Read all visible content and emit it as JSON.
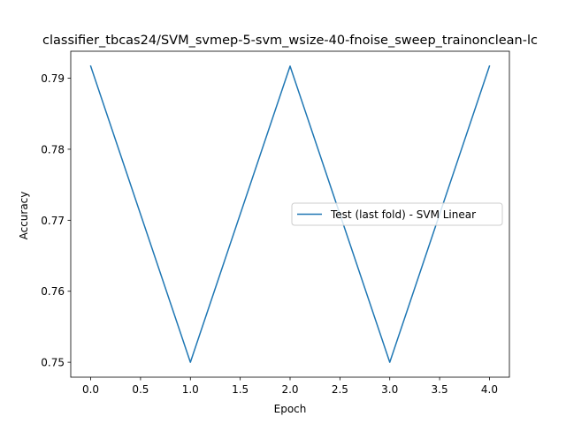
{
  "chart_data": {
    "type": "line",
    "title": "classifier_tbcas24/SVM_svmep-5-svm_wsize-40-fnoise_sweep_trainonclean-lc",
    "xlabel": "Epoch",
    "ylabel": "Accuracy",
    "x": [
      0,
      1,
      2,
      3,
      4
    ],
    "series": [
      {
        "name": "Test (last fold) - SVM Linear",
        "values": [
          0.7917,
          0.75,
          0.7917,
          0.75,
          0.7917
        ],
        "color": "#1f77b4"
      }
    ],
    "xlim": [
      -0.2,
      4.2
    ],
    "ylim": [
      0.7479,
      0.7938
    ],
    "xticks": [
      {
        "value": 0.0,
        "label": "0.0"
      },
      {
        "value": 0.5,
        "label": "0.5"
      },
      {
        "value": 1.0,
        "label": "1.0"
      },
      {
        "value": 1.5,
        "label": "1.5"
      },
      {
        "value": 2.0,
        "label": "2.0"
      },
      {
        "value": 2.5,
        "label": "2.5"
      },
      {
        "value": 3.0,
        "label": "3.0"
      },
      {
        "value": 3.5,
        "label": "3.5"
      },
      {
        "value": 4.0,
        "label": "4.0"
      }
    ],
    "yticks": [
      {
        "value": 0.75,
        "label": "0.75"
      },
      {
        "value": 0.76,
        "label": "0.76"
      },
      {
        "value": 0.77,
        "label": "0.77"
      },
      {
        "value": 0.78,
        "label": "0.78"
      },
      {
        "value": 0.79,
        "label": "0.79"
      }
    ],
    "grid": false,
    "legend_position": "center-right"
  }
}
